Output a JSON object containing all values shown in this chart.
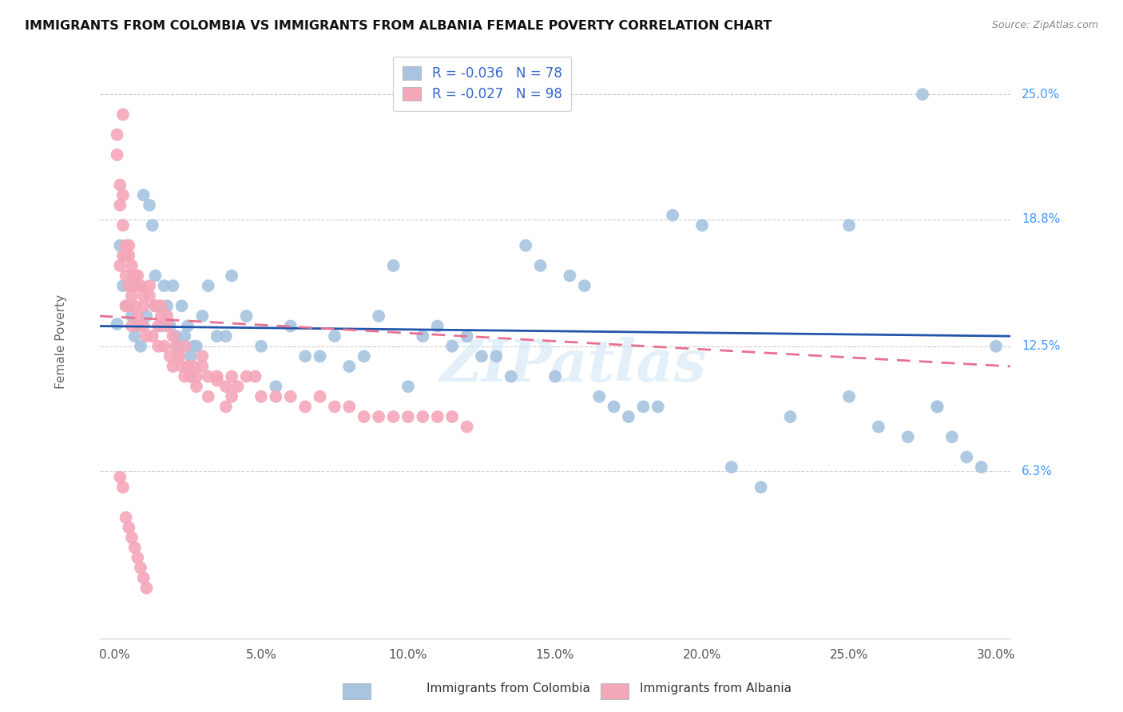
{
  "title": "IMMIGRANTS FROM COLOMBIA VS IMMIGRANTS FROM ALBANIA FEMALE POVERTY CORRELATION CHART",
  "source": "Source: ZipAtlas.com",
  "xlabel_ticks": [
    "0.0%",
    "5.0%",
    "10.0%",
    "15.0%",
    "20.0%",
    "25.0%",
    "30.0%"
  ],
  "xlabel_vals": [
    0.0,
    0.05,
    0.1,
    0.15,
    0.2,
    0.25,
    0.3
  ],
  "ylabel": "Female Poverty",
  "ytick_labels": [
    "6.3%",
    "12.5%",
    "18.8%",
    "25.0%"
  ],
  "ytick_vals": [
    0.063,
    0.125,
    0.188,
    0.25
  ],
  "xlim": [
    -0.005,
    0.305
  ],
  "ylim": [
    -0.02,
    0.275
  ],
  "colombia_R": -0.036,
  "colombia_N": 78,
  "albania_R": -0.027,
  "albania_N": 98,
  "colombia_color": "#a8c4e0",
  "albania_color": "#f4a7b9",
  "colombia_line_color": "#2255aa",
  "albania_line_color": "#e87090",
  "watermark": "ZIPatlas",
  "colombia_x": [
    0.001,
    0.002,
    0.003,
    0.004,
    0.005,
    0.006,
    0.007,
    0.008,
    0.009,
    0.01,
    0.011,
    0.012,
    0.013,
    0.014,
    0.015,
    0.016,
    0.017,
    0.018,
    0.019,
    0.02,
    0.021,
    0.022,
    0.023,
    0.024,
    0.025,
    0.026,
    0.027,
    0.028,
    0.03,
    0.032,
    0.035,
    0.038,
    0.04,
    0.045,
    0.05,
    0.055,
    0.06,
    0.065,
    0.07,
    0.075,
    0.08,
    0.085,
    0.09,
    0.095,
    0.1,
    0.105,
    0.11,
    0.115,
    0.12,
    0.125,
    0.13,
    0.135,
    0.14,
    0.145,
    0.15,
    0.155,
    0.16,
    0.165,
    0.17,
    0.175,
    0.18,
    0.185,
    0.19,
    0.2,
    0.21,
    0.22,
    0.23,
    0.25,
    0.26,
    0.27,
    0.275,
    0.28,
    0.285,
    0.29,
    0.295,
    0.3,
    0.25,
    0.28
  ],
  "colombia_y": [
    0.136,
    0.175,
    0.155,
    0.145,
    0.155,
    0.14,
    0.13,
    0.135,
    0.125,
    0.2,
    0.14,
    0.195,
    0.185,
    0.16,
    0.145,
    0.135,
    0.155,
    0.145,
    0.135,
    0.155,
    0.13,
    0.125,
    0.145,
    0.13,
    0.135,
    0.12,
    0.125,
    0.125,
    0.14,
    0.155,
    0.13,
    0.13,
    0.16,
    0.14,
    0.125,
    0.105,
    0.135,
    0.12,
    0.12,
    0.13,
    0.115,
    0.12,
    0.14,
    0.165,
    0.105,
    0.13,
    0.135,
    0.125,
    0.13,
    0.12,
    0.12,
    0.11,
    0.175,
    0.165,
    0.11,
    0.16,
    0.155,
    0.1,
    0.095,
    0.09,
    0.095,
    0.095,
    0.19,
    0.185,
    0.065,
    0.055,
    0.09,
    0.1,
    0.085,
    0.08,
    0.25,
    0.095,
    0.08,
    0.07,
    0.065,
    0.125,
    0.185,
    0.095
  ],
  "albania_x": [
    0.001,
    0.001,
    0.002,
    0.002,
    0.002,
    0.003,
    0.003,
    0.003,
    0.004,
    0.004,
    0.004,
    0.005,
    0.005,
    0.005,
    0.006,
    0.006,
    0.006,
    0.007,
    0.007,
    0.008,
    0.008,
    0.009,
    0.009,
    0.01,
    0.01,
    0.011,
    0.012,
    0.013,
    0.014,
    0.015,
    0.015,
    0.016,
    0.017,
    0.018,
    0.019,
    0.02,
    0.021,
    0.022,
    0.023,
    0.024,
    0.025,
    0.026,
    0.027,
    0.028,
    0.03,
    0.032,
    0.035,
    0.038,
    0.04,
    0.042,
    0.045,
    0.048,
    0.05,
    0.055,
    0.06,
    0.065,
    0.07,
    0.075,
    0.08,
    0.085,
    0.09,
    0.095,
    0.1,
    0.105,
    0.11,
    0.115,
    0.12,
    0.008,
    0.01,
    0.012,
    0.014,
    0.016,
    0.018,
    0.003,
    0.004,
    0.005,
    0.006,
    0.007,
    0.02,
    0.022,
    0.024,
    0.026,
    0.028,
    0.03,
    0.032,
    0.035,
    0.038,
    0.04,
    0.002,
    0.003,
    0.004,
    0.005,
    0.006,
    0.007,
    0.008,
    0.009,
    0.01,
    0.011
  ],
  "albania_y": [
    0.23,
    0.22,
    0.195,
    0.205,
    0.165,
    0.2,
    0.185,
    0.17,
    0.175,
    0.16,
    0.145,
    0.17,
    0.155,
    0.145,
    0.165,
    0.15,
    0.135,
    0.16,
    0.145,
    0.155,
    0.14,
    0.155,
    0.135,
    0.145,
    0.135,
    0.13,
    0.15,
    0.13,
    0.145,
    0.135,
    0.125,
    0.14,
    0.125,
    0.135,
    0.12,
    0.13,
    0.125,
    0.12,
    0.115,
    0.125,
    0.115,
    0.11,
    0.115,
    0.11,
    0.12,
    0.11,
    0.11,
    0.105,
    0.11,
    0.105,
    0.11,
    0.11,
    0.1,
    0.1,
    0.1,
    0.095,
    0.1,
    0.095,
    0.095,
    0.09,
    0.09,
    0.09,
    0.09,
    0.09,
    0.09,
    0.09,
    0.085,
    0.16,
    0.15,
    0.155,
    0.145,
    0.145,
    0.14,
    0.24,
    0.17,
    0.175,
    0.155,
    0.155,
    0.115,
    0.12,
    0.11,
    0.11,
    0.105,
    0.115,
    0.1,
    0.108,
    0.095,
    0.1,
    0.06,
    0.055,
    0.04,
    0.035,
    0.03,
    0.025,
    0.02,
    0.015,
    0.01,
    0.005
  ]
}
